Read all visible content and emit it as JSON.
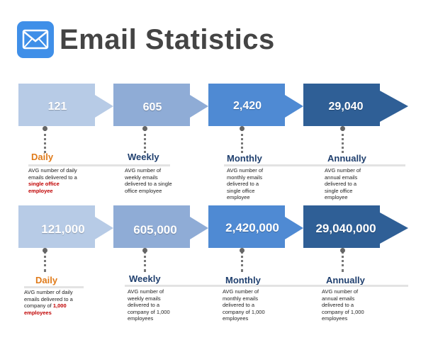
{
  "header": {
    "title": "Email Statistics",
    "icon": "mail-icon"
  },
  "colors": {
    "stage1": "#b7cbe6",
    "stage2": "#8facd6",
    "stage3": "#4f8ad3",
    "stage4": "#2f5f96",
    "daily_label": "#e07b1a",
    "other_label": "#1f3f6e",
    "highlight": "#c00000"
  },
  "rows": [
    {
      "stages": [
        {
          "value": "121",
          "period": "Daily",
          "desc_pre": "AVG number of daily emails delivered to a ",
          "desc_hl": "single office employee"
        },
        {
          "value": "605",
          "period": "Weekly",
          "desc_pre": "AVG number of weekly emails delivered to a single office employee",
          "desc_hl": ""
        },
        {
          "value": "2,420",
          "period": "Monthly",
          "desc_pre": "AVG number of monthly emails delivered to a single office employee",
          "desc_hl": ""
        },
        {
          "value": "29,040",
          "period": "Annually",
          "desc_pre": "AVG number of annual emails delivered to a single office employee",
          "desc_hl": ""
        }
      ]
    },
    {
      "stages": [
        {
          "value": "121,000",
          "period": "Daily",
          "desc_pre": "AVG number of daily emails delivered to a company of ",
          "desc_hl": "1,000 employees"
        },
        {
          "value": "605,000",
          "period": "Weekly",
          "desc_pre": "AVG number of weekly emails delivered to a company of 1,000 employees",
          "desc_hl": ""
        },
        {
          "value": "2,420,000",
          "period": "Monthly",
          "desc_pre": "AVG number of monthly emails delivered to a company of 1,000 employees",
          "desc_hl": ""
        },
        {
          "value": "29,040,000",
          "period": "Annually",
          "desc_pre": "AVG number of annual emails delivered to a company of 1,000 employees",
          "desc_hl": ""
        }
      ]
    }
  ]
}
